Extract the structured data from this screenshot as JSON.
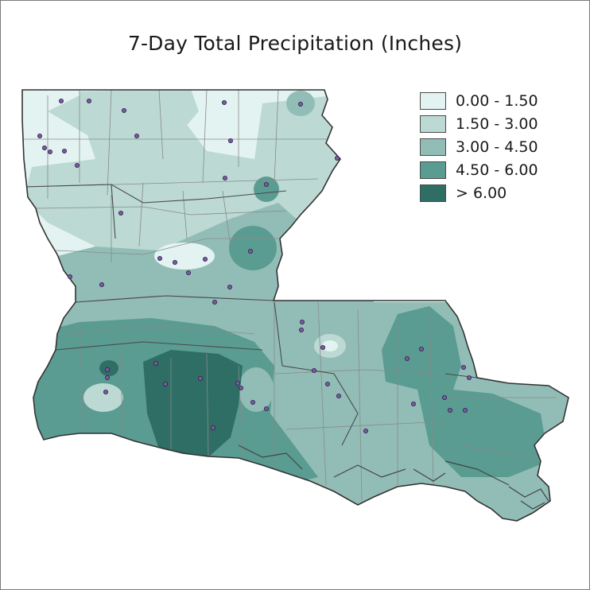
{
  "title": "7-Day Total Precipitation (Inches)",
  "legend": [
    {
      "label": "0.00 - 1.50",
      "color": "#e3f3f1"
    },
    {
      "label": "1.50 - 3.00",
      "color": "#bcd9d4"
    },
    {
      "label": "3.00 - 4.50",
      "color": "#92bdb6"
    },
    {
      "label": "4.50 - 6.00",
      "color": "#5a9c91"
    },
    {
      "label": "> 6.00",
      "color": "#2f6e64"
    }
  ],
  "map_style": {
    "state_outline": "#333333",
    "parish_lines": "#8a8a8a",
    "station_fill": "#7c5aa3",
    "station_stroke": "#2d1f45"
  }
}
